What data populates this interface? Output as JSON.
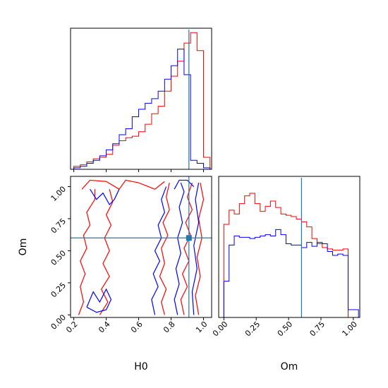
{
  "chart_data": [
    {
      "type": "histogram",
      "panel": "H0 marginal",
      "xlim": [
        0.18,
        1.05
      ],
      "truth": 0.91,
      "truth_color": "#1f77b4",
      "bin_edges": [
        0.2,
        0.24,
        0.28,
        0.32,
        0.36,
        0.4,
        0.44,
        0.48,
        0.52,
        0.56,
        0.6,
        0.64,
        0.68,
        0.72,
        0.76,
        0.8,
        0.84,
        0.88,
        0.92,
        0.96,
        1.0,
        1.04
      ],
      "series": [
        {
          "color": "#ff0000",
          "values": [
            0.02,
            0.03,
            0.05,
            0.07,
            0.08,
            0.1,
            0.16,
            0.19,
            0.21,
            0.22,
            0.25,
            0.3,
            0.37,
            0.42,
            0.52,
            0.62,
            0.72,
            0.84,
            0.91,
            0.79,
            0.08
          ]
        },
        {
          "color": "#0000ff",
          "values": [
            0.01,
            0.02,
            0.04,
            0.06,
            0.09,
            0.13,
            0.17,
            0.23,
            0.27,
            0.35,
            0.4,
            0.44,
            0.47,
            0.52,
            0.6,
            0.69,
            0.8,
            0.63,
            0.06,
            0.04,
            0.01
          ]
        }
      ]
    },
    {
      "type": "histogram",
      "panel": "Om marginal",
      "xlim": [
        -0.04,
        1.05
      ],
      "truth": 0.6,
      "truth_color": "#1f77b4",
      "bin_edges": [
        0.0,
        0.04,
        0.08,
        0.12,
        0.16,
        0.2,
        0.24,
        0.28,
        0.32,
        0.36,
        0.4,
        0.44,
        0.48,
        0.52,
        0.56,
        0.6,
        0.64,
        0.68,
        0.72,
        0.76,
        0.8,
        0.84,
        0.88,
        0.92,
        0.96,
        1.0,
        1.04
      ],
      "series": [
        {
          "color": "#ff0000",
          "values": [
            0.72,
            0.83,
            0.8,
            0.88,
            0.94,
            0.96,
            0.88,
            0.82,
            0.86,
            0.9,
            0.85,
            0.8,
            0.79,
            0.78,
            0.76,
            0.74,
            0.7,
            0.61,
            0.57,
            0.54,
            0.53,
            0.52,
            0.52,
            0.53,
            0.0,
            0.0
          ]
        },
        {
          "color": "#0000ff",
          "values": [
            0.28,
            0.56,
            0.63,
            0.62,
            0.62,
            0.61,
            0.62,
            0.63,
            0.64,
            0.63,
            0.68,
            0.64,
            0.57,
            0.56,
            0.56,
            0.54,
            0.58,
            0.55,
            0.58,
            0.57,
            0.51,
            0.48,
            0.49,
            0.48,
            0.06,
            0.06
          ]
        }
      ]
    },
    {
      "type": "contour",
      "panel": "H0 vs Om joint",
      "xlabel": "H0",
      "ylabel": "Om",
      "xlim": [
        0.18,
        1.05
      ],
      "ylim": [
        -0.02,
        1.08
      ],
      "xticks": [
        "0.2",
        "0.4",
        "0.6",
        "0.8",
        "1.0"
      ],
      "xtick_values": [
        0.2,
        0.4,
        0.6,
        0.8,
        1.0
      ],
      "yticks": [
        "0.00",
        "0.25",
        "0.50",
        "0.75",
        "1.00"
      ],
      "ytick_values": [
        0.0,
        0.25,
        0.5,
        0.75,
        1.0
      ],
      "truth": {
        "H0": 0.91,
        "Om": 0.6
      },
      "truth_color": "#1f77b4",
      "contours": [
        {
          "color": "#ff0000",
          "points": [
            [
              0.23,
              0.0
            ],
            [
              0.26,
              0.1
            ],
            [
              0.24,
              0.22
            ],
            [
              0.27,
              0.32
            ],
            [
              0.24,
              0.42
            ],
            [
              0.28,
              0.52
            ],
            [
              0.26,
              0.62
            ],
            [
              0.3,
              0.7
            ],
            [
              0.28,
              0.8
            ],
            [
              0.33,
              0.9
            ],
            [
              0.33,
              0.98
            ]
          ]
        },
        {
          "color": "#ff0000",
          "points": [
            [
              0.36,
              0.0
            ],
            [
              0.41,
              0.1
            ],
            [
              0.37,
              0.2
            ],
            [
              0.42,
              0.3
            ],
            [
              0.38,
              0.4
            ],
            [
              0.42,
              0.5
            ],
            [
              0.39,
              0.6
            ],
            [
              0.43,
              0.7
            ],
            [
              0.4,
              0.78
            ],
            [
              0.44,
              0.88
            ],
            [
              0.42,
              0.98
            ]
          ]
        },
        {
          "color": "#ff0000",
          "points": [
            [
              0.76,
              0.0
            ],
            [
              0.74,
              0.1
            ],
            [
              0.77,
              0.2
            ],
            [
              0.73,
              0.3
            ],
            [
              0.76,
              0.4
            ],
            [
              0.74,
              0.52
            ],
            [
              0.78,
              0.62
            ],
            [
              0.75,
              0.72
            ],
            [
              0.79,
              0.82
            ],
            [
              0.77,
              0.92
            ],
            [
              0.79,
              1.03
            ]
          ]
        },
        {
          "color": "#ff0000",
          "points": [
            [
              0.88,
              0.0
            ],
            [
              0.86,
              0.12
            ],
            [
              0.9,
              0.22
            ],
            [
              0.87,
              0.32
            ],
            [
              0.91,
              0.42
            ],
            [
              0.88,
              0.52
            ],
            [
              0.92,
              0.62
            ],
            [
              0.89,
              0.72
            ],
            [
              0.93,
              0.82
            ],
            [
              0.9,
              0.92
            ],
            [
              0.93,
              1.03
            ]
          ]
        },
        {
          "color": "#ff0000",
          "points": [
            [
              0.97,
              0.0
            ],
            [
              0.95,
              0.15
            ],
            [
              0.98,
              0.3
            ],
            [
              0.96,
              0.45
            ],
            [
              0.99,
              0.6
            ],
            [
              0.97,
              0.75
            ],
            [
              1.0,
              0.9
            ],
            [
              0.98,
              1.03
            ]
          ]
        },
        {
          "color": "#ff0000",
          "points": [
            [
              0.25,
              0.98
            ],
            [
              0.3,
              1.05
            ],
            [
              0.4,
              1.04
            ],
            [
              0.48,
              0.98
            ],
            [
              0.52,
              1.05
            ],
            [
              0.6,
              1.03
            ],
            [
              0.7,
              0.98
            ],
            [
              0.76,
              1.04
            ]
          ]
        },
        {
          "color": "#0000ff",
          "points": [
            [
              0.3,
              0.98
            ],
            [
              0.34,
              0.9
            ],
            [
              0.38,
              0.95
            ],
            [
              0.42,
              0.86
            ],
            [
              0.45,
              0.9
            ],
            [
              0.48,
              0.98
            ]
          ]
        },
        {
          "color": "#0000ff",
          "points": [
            [
              0.28,
              0.06
            ],
            [
              0.32,
              0.18
            ],
            [
              0.36,
              0.1
            ],
            [
              0.4,
              0.2
            ],
            [
              0.43,
              0.12
            ],
            [
              0.4,
              0.04
            ],
            [
              0.34,
              0.02
            ],
            [
              0.28,
              0.06
            ]
          ]
        },
        {
          "color": "#0000ff",
          "points": [
            [
              0.7,
              0.0
            ],
            [
              0.68,
              0.12
            ],
            [
              0.72,
              0.22
            ],
            [
              0.69,
              0.32
            ],
            [
              0.73,
              0.42
            ],
            [
              0.7,
              0.5
            ],
            [
              0.74,
              0.6
            ],
            [
              0.72,
              0.7
            ],
            [
              0.76,
              0.8
            ],
            [
              0.74,
              0.9
            ],
            [
              0.77,
              1.0
            ]
          ]
        },
        {
          "color": "#0000ff",
          "points": [
            [
              0.84,
              0.0
            ],
            [
              0.82,
              0.12
            ],
            [
              0.85,
              0.24
            ],
            [
              0.83,
              0.36
            ],
            [
              0.86,
              0.48
            ],
            [
              0.84,
              0.6
            ],
            [
              0.87,
              0.72
            ],
            [
              0.85,
              0.84
            ],
            [
              0.88,
              0.96
            ],
            [
              0.86,
              1.03
            ]
          ]
        },
        {
          "color": "#0000ff",
          "points": [
            [
              0.94,
              0.0
            ],
            [
              0.93,
              0.18
            ],
            [
              0.96,
              0.36
            ],
            [
              0.94,
              0.54
            ],
            [
              0.97,
              0.72
            ],
            [
              0.95,
              0.9
            ],
            [
              0.97,
              1.03
            ]
          ]
        },
        {
          "color": "#0000ff",
          "points": [
            [
              0.82,
              0.98
            ],
            [
              0.85,
              1.05
            ],
            [
              0.9,
              1.05
            ],
            [
              0.94,
              1.0
            ]
          ]
        }
      ]
    }
  ]
}
